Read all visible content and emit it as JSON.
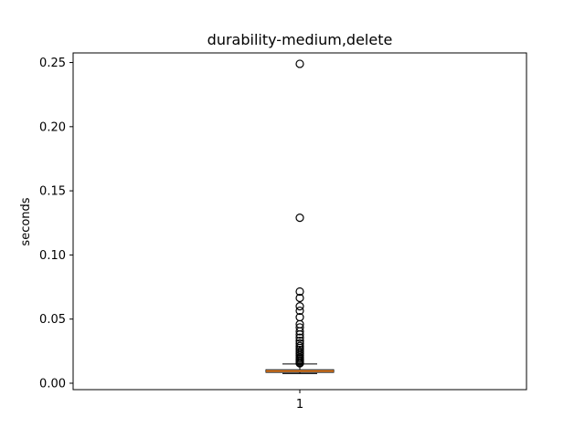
{
  "chart_data": {
    "type": "box",
    "title": "durability-medium,delete",
    "xlabel": "",
    "ylabel": "seconds",
    "categories": [
      "1"
    ],
    "ylim": [
      -0.005,
      0.2575
    ],
    "yticks": [
      0.0,
      0.05,
      0.1,
      0.15,
      0.2,
      0.25
    ],
    "ytick_labels": [
      "0.00",
      "0.05",
      "0.10",
      "0.15",
      "0.20",
      "0.25"
    ],
    "grid": false,
    "box": {
      "whisker_low": 0.0075,
      "q1": 0.0085,
      "median": 0.0095,
      "q3": 0.0105,
      "whisker_high": 0.015
    },
    "outliers": [
      0.249,
      0.129,
      0.0715,
      0.0665,
      0.06,
      0.0565,
      0.0515,
      0.046,
      0.0435,
      0.0405,
      0.038,
      0.0355,
      0.033,
      0.031,
      0.029,
      0.0275,
      0.026,
      0.0245,
      0.023,
      0.0215,
      0.02,
      0.019,
      0.018,
      0.017,
      0.016,
      0.0155
    ],
    "colors": {
      "median": "#ff7f0e",
      "box": "#000000",
      "outlier": "#000000"
    }
  }
}
